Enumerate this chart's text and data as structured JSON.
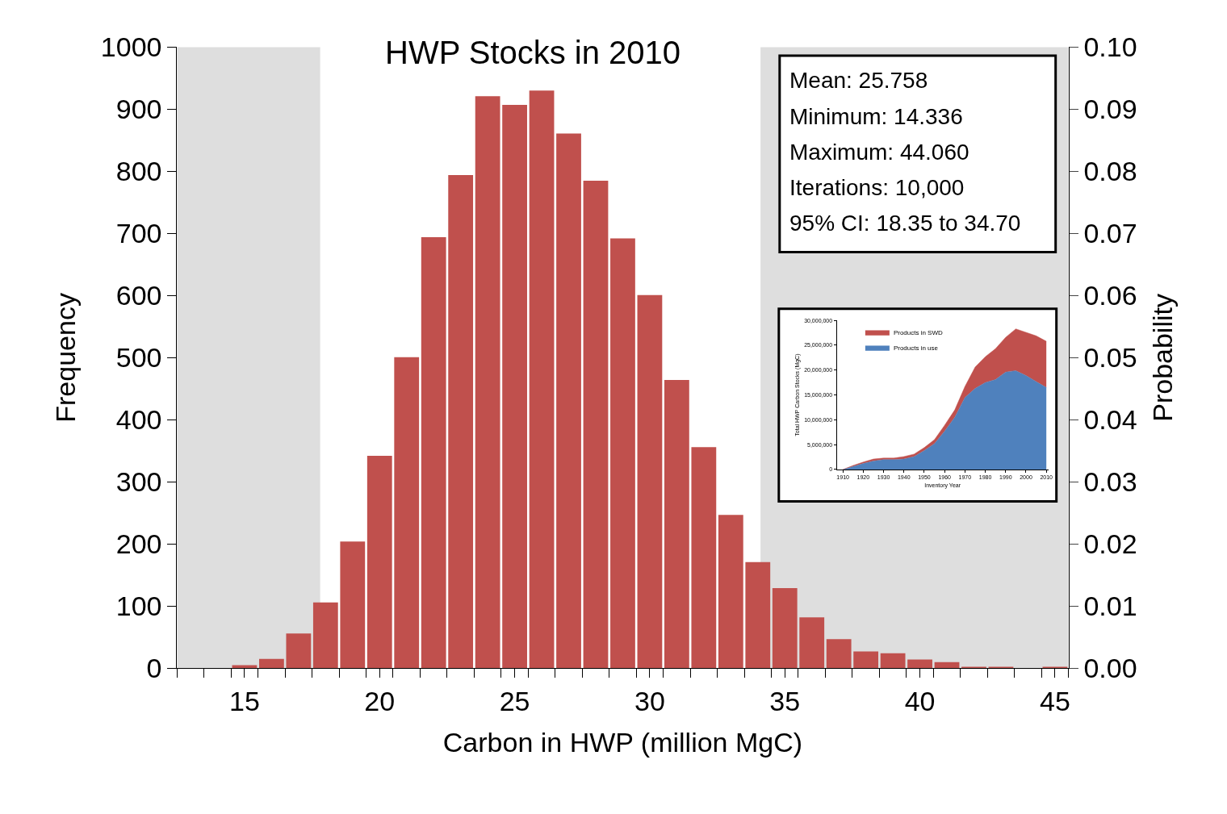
{
  "chart_data": [
    {
      "type": "histogram",
      "title": "HWP Stocks in 2010",
      "xlabel": "Carbon in HWP (million MgC)",
      "ylabel": "Frequency",
      "y2label": "Probability",
      "color": "#c0504d",
      "bins": [
        12.5,
        13.5,
        14.5,
        15.5,
        16.5,
        17.5,
        18.5,
        19.5,
        20.5,
        21.5,
        22.5,
        23.5,
        24.5,
        25.5,
        26.5,
        27.5,
        28.5,
        29.5,
        30.5,
        31.5,
        32.5,
        33.5,
        34.5,
        35.5,
        36.5,
        37.5,
        38.5,
        39.5,
        40.5,
        41.5,
        42.5,
        43.5,
        44.5,
        45.5
      ],
      "values": [
        0,
        0,
        5,
        15,
        56,
        106,
        204,
        342,
        501,
        694,
        794,
        921,
        907,
        930,
        861,
        785,
        692,
        601,
        464,
        356,
        247,
        171,
        129,
        82,
        47,
        27,
        24,
        14,
        10,
        2,
        2,
        0,
        2
      ],
      "xlim": [
        12.5,
        45.5
      ],
      "xticks": [
        {
          "value": 12.5,
          "label": null
        },
        {
          "value": 13.5,
          "label": null
        },
        {
          "value": 14.5,
          "label": null
        },
        15,
        {
          "value": 15.5,
          "label": null
        },
        {
          "value": 16.5,
          "label": null
        },
        {
          "value": 17.5,
          "label": null
        },
        {
          "value": 18.5,
          "label": null
        },
        {
          "value": 19.5,
          "label": null
        },
        20,
        {
          "value": 20.5,
          "label": null
        },
        {
          "value": 21.5,
          "label": null
        },
        {
          "value": 22.5,
          "label": null
        },
        {
          "value": 23.5,
          "label": null
        },
        {
          "value": 24.5,
          "label": null
        },
        25,
        {
          "value": 25.5,
          "label": null
        },
        {
          "value": 26.5,
          "label": null
        },
        {
          "value": 27.5,
          "label": null
        },
        {
          "value": 28.5,
          "label": null
        },
        {
          "value": 29.5,
          "label": null
        },
        30,
        {
          "value": 30.5,
          "label": null
        },
        {
          "value": 31.5,
          "label": null
        },
        {
          "value": 32.5,
          "label": null
        },
        {
          "value": 33.5,
          "label": null
        },
        {
          "value": 34.5,
          "label": null
        },
        35,
        {
          "value": 35.5,
          "label": null
        },
        {
          "value": 36.5,
          "label": null
        },
        {
          "value": 37.5,
          "label": null
        },
        {
          "value": 38.5,
          "label": null
        },
        {
          "value": 39.5,
          "label": null
        },
        40,
        {
          "value": 40.5,
          "label": null
        },
        {
          "value": 41.5,
          "label": null
        },
        {
          "value": 42.5,
          "label": null
        },
        {
          "value": 43.5,
          "label": null
        },
        {
          "value": 44.5,
          "label": null
        },
        45,
        {
          "value": 45.5,
          "label": null
        }
      ],
      "ylim": [
        0,
        1000
      ],
      "yticks": [
        0,
        100,
        200,
        300,
        400,
        500,
        600,
        700,
        800,
        900,
        1000
      ],
      "y2lim": [
        0,
        0.1
      ],
      "y2ticks": [
        {
          "value": 0,
          "label": "0.00"
        },
        {
          "value": 0.01,
          "label": "0.01"
        },
        {
          "value": 0.02,
          "label": "0.02"
        },
        {
          "value": 0.03,
          "label": "0.03"
        },
        {
          "value": 0.04,
          "label": "0.04"
        },
        {
          "value": 0.05,
          "label": "0.05"
        },
        {
          "value": 0.06,
          "label": "0.06"
        },
        {
          "value": 0.07,
          "label": "0.07"
        },
        {
          "value": 0.08,
          "label": "0.08"
        },
        {
          "value": 0.09,
          "label": "0.09"
        },
        {
          "value": 0.1,
          "label": "0.10"
        }
      ],
      "bands": [
        {
          "axis": "x",
          "from": 12.5,
          "to": 17.8,
          "color": "#dedede"
        },
        {
          "axis": "x",
          "from": 34.1,
          "to": 45.5,
          "color": "#dedede"
        }
      ],
      "annotations": [
        "Mean: 25.758",
        "Minimum: 14.336",
        "Maximum: 44.060",
        "Iterations: 10,000",
        "95% CI: 18.35 to 34.70"
      ],
      "grid": false,
      "legend": false
    },
    {
      "type": "area",
      "stacked": true,
      "xlabel": "Inventory Year",
      "ylabel": "Total HWP Carbon Stocks (MgC)",
      "x": [
        1910,
        1915,
        1920,
        1925,
        1930,
        1935,
        1940,
        1945,
        1950,
        1955,
        1960,
        1965,
        1970,
        1975,
        1980,
        1985,
        1990,
        1995,
        2000,
        2005,
        2010
      ],
      "series": [
        {
          "name": "Products in use",
          "color": "#4f81bd",
          "values": [
            0,
            600000,
            1200000,
            1700000,
            2000000,
            2000000,
            2100000,
            2600000,
            3800000,
            5200000,
            7700000,
            10500000,
            14500000,
            16300000,
            17500000,
            18100000,
            19600000,
            19900000,
            18900000,
            17700000,
            16500000
          ]
        },
        {
          "name": "Products in SWD",
          "color": "#c0504d",
          "values": [
            0,
            200000,
            300000,
            400000,
            300000,
            300000,
            500000,
            500000,
            600000,
            800000,
            1200000,
            1500000,
            2200000,
            4300000,
            5200000,
            6200000,
            7000000,
            8400000,
            8700000,
            9200000,
            9300000
          ]
        }
      ],
      "xlim": [
        1907,
        2011
      ],
      "xticks": [
        1910,
        1920,
        1930,
        1940,
        1950,
        1960,
        1970,
        1980,
        1990,
        2000,
        2010
      ],
      "ylim": [
        0,
        30000000
      ],
      "yticks": [
        0,
        {
          "value": 5000000,
          "label": "5,000,000"
        },
        {
          "value": 10000000,
          "label": "10,000,000"
        },
        {
          "value": 15000000,
          "label": "15,000,000"
        },
        {
          "value": 20000000,
          "label": "20,000,000"
        },
        {
          "value": 25000000,
          "label": "25,000,000"
        },
        {
          "value": 30000000,
          "label": "30,000,000"
        }
      ],
      "legend": "top left",
      "grid": false
    }
  ]
}
